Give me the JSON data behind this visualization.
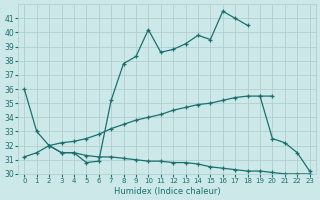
{
  "xlabel": "Humidex (Indice chaleur)",
  "xlim": [
    -0.5,
    23.5
  ],
  "ylim": [
    30,
    42
  ],
  "yticks": [
    30,
    31,
    32,
    33,
    34,
    35,
    36,
    37,
    38,
    39,
    40,
    41
  ],
  "xticks": [
    0,
    1,
    2,
    3,
    4,
    5,
    6,
    7,
    8,
    9,
    10,
    11,
    12,
    13,
    14,
    15,
    16,
    17,
    18,
    19,
    20,
    21,
    22,
    23
  ],
  "bg_color": "#cde8e8",
  "line_color": "#1a7070",
  "grid_color": "#aacccc",
  "curve1_x": [
    0,
    1,
    2,
    3,
    4,
    5,
    6,
    7,
    8,
    9,
    10,
    11,
    12,
    13,
    14,
    15,
    16,
    17,
    18
  ],
  "curve1_y": [
    36.0,
    33.0,
    32.0,
    31.5,
    31.5,
    30.8,
    30.9,
    35.2,
    37.8,
    38.3,
    40.2,
    38.6,
    38.8,
    39.2,
    39.8,
    39.5,
    41.5,
    41.0,
    40.5
  ],
  "curve2_x": [
    0,
    1,
    2,
    3,
    4,
    5,
    6,
    7,
    8,
    9,
    10,
    11,
    12,
    13,
    14,
    15,
    16,
    17,
    18,
    19,
    20
  ],
  "curve2_y": [
    31.2,
    31.5,
    32.0,
    32.2,
    32.3,
    32.5,
    32.8,
    33.2,
    33.5,
    33.8,
    34.0,
    34.2,
    34.5,
    34.7,
    34.9,
    35.0,
    35.2,
    35.4,
    35.5,
    35.5,
    35.5
  ],
  "curve3_x": [
    2,
    3,
    4,
    5,
    6,
    7,
    8,
    9,
    10,
    11,
    12,
    13,
    14,
    15,
    16,
    17,
    18,
    19,
    20,
    21,
    22,
    23
  ],
  "curve3_y": [
    32.0,
    31.5,
    31.5,
    31.3,
    31.2,
    31.2,
    31.1,
    31.0,
    30.9,
    30.9,
    30.8,
    30.8,
    30.7,
    30.5,
    30.4,
    30.3,
    30.2,
    30.2,
    30.1,
    30.0,
    30.0,
    30.0
  ],
  "drop_x": [
    19,
    20,
    21,
    22,
    23
  ],
  "drop_y": [
    35.5,
    32.5,
    32.2,
    31.5,
    30.2
  ]
}
